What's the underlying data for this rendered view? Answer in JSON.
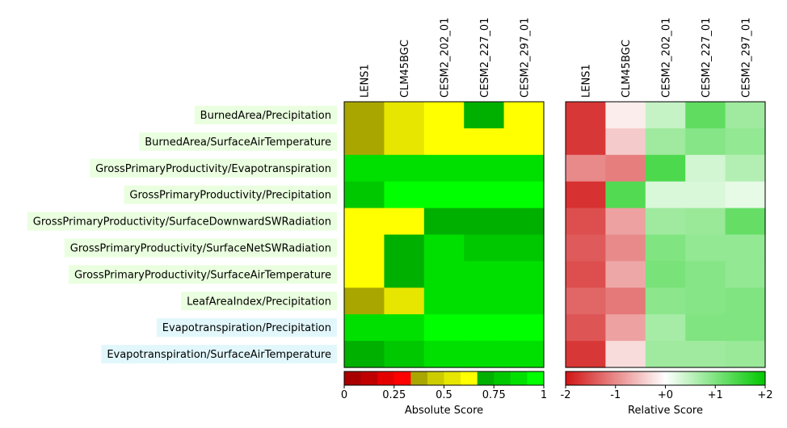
{
  "chart_data": {
    "type": "heatmap",
    "columns": [
      "LENS1",
      "CLM45BGC",
      "CESM2_202_01",
      "CESM2_227_01",
      "CESM2_297_01"
    ],
    "rows": [
      {
        "label": "BurnedArea/Precipitation",
        "highlight": "#eaffdf"
      },
      {
        "label": "BurnedArea/SurfaceAirTemperature",
        "highlight": "#eaffdf"
      },
      {
        "label": "GrossPrimaryProductivity/Evapotranspiration",
        "highlight": "#eaffdf"
      },
      {
        "label": "GrossPrimaryProductivity/Precipitation",
        "highlight": "#eaffdf"
      },
      {
        "label": "GrossPrimaryProductivity/SurfaceDownwardSWRadiation",
        "highlight": "#eaffdf"
      },
      {
        "label": "GrossPrimaryProductivity/SurfaceNetSWRadiation",
        "highlight": "#eaffdf"
      },
      {
        "label": "GrossPrimaryProductivity/SurfaceAirTemperature",
        "highlight": "#eaffdf"
      },
      {
        "label": "LeafAreaIndex/Precipitation",
        "highlight": "#eaffdf"
      },
      {
        "label": "Evapotranspiration/Precipitation",
        "highlight": "#e2f7fb"
      },
      {
        "label": "Evapotranspiration/SurfaceAirTemperature",
        "highlight": "#e2f7fb"
      }
    ],
    "panels": [
      {
        "name": "absolute",
        "colorbar_label": "Absolute Score",
        "ticks": [
          0,
          0.25,
          0.5,
          0.75,
          1
        ],
        "tick_labels": [
          "0",
          "0.25",
          "0.5",
          "0.75",
          "1"
        ],
        "range": [
          0,
          1
        ],
        "colors": [
          "#a80000",
          "#c00000",
          "#e40000",
          "#ff0000",
          "#aaa600",
          "#cccc00",
          "#e6e600",
          "#ffff00",
          "#00b000",
          "#00c800",
          "#00e000",
          "#00ff00"
        ],
        "values": [
          [
            0.4,
            0.57,
            0.65,
            0.72,
            0.66
          ],
          [
            0.41,
            0.54,
            0.64,
            0.65,
            0.64
          ],
          [
            0.85,
            0.85,
            0.9,
            0.89,
            0.89
          ],
          [
            0.8,
            0.97,
            0.93,
            0.93,
            0.93
          ],
          [
            0.6,
            0.66,
            0.72,
            0.72,
            0.74
          ],
          [
            0.66,
            0.69,
            0.84,
            0.83,
            0.83
          ],
          [
            0.65,
            0.74,
            0.87,
            0.86,
            0.87
          ],
          [
            0.4,
            0.5,
            0.87,
            0.86,
            0.88
          ],
          [
            0.88,
            0.88,
            0.92,
            0.92,
            0.92
          ],
          [
            0.73,
            0.8,
            0.84,
            0.84,
            0.84
          ]
        ]
      },
      {
        "name": "relative",
        "colorbar_label": "Relative Score",
        "ticks": [
          -2,
          -1,
          0,
          1,
          2
        ],
        "tick_labels": [
          "-2",
          "-1",
          "+0",
          "+1",
          "+2"
        ],
        "range": [
          -2,
          2
        ],
        "colors": [
          "#d11414",
          "#ffffff",
          "#00c800"
        ],
        "values": [
          [
            -1.7,
            -0.15,
            0.45,
            1.25,
            0.75
          ],
          [
            -1.7,
            -0.45,
            0.75,
            0.95,
            0.85
          ],
          [
            -1.0,
            -1.1,
            1.4,
            0.35,
            0.6
          ],
          [
            -1.75,
            1.35,
            0.3,
            0.3,
            0.2
          ],
          [
            -1.5,
            -0.8,
            0.75,
            0.8,
            1.2
          ],
          [
            -1.4,
            -1.0,
            1.0,
            0.85,
            0.85
          ],
          [
            -1.5,
            -0.75,
            1.05,
            0.95,
            0.85
          ],
          [
            -1.3,
            -1.15,
            0.9,
            0.95,
            1.0
          ],
          [
            -1.45,
            -0.8,
            0.7,
            1.0,
            1.0
          ],
          [
            -1.7,
            -0.3,
            0.75,
            0.75,
            0.8
          ]
        ]
      }
    ]
  }
}
